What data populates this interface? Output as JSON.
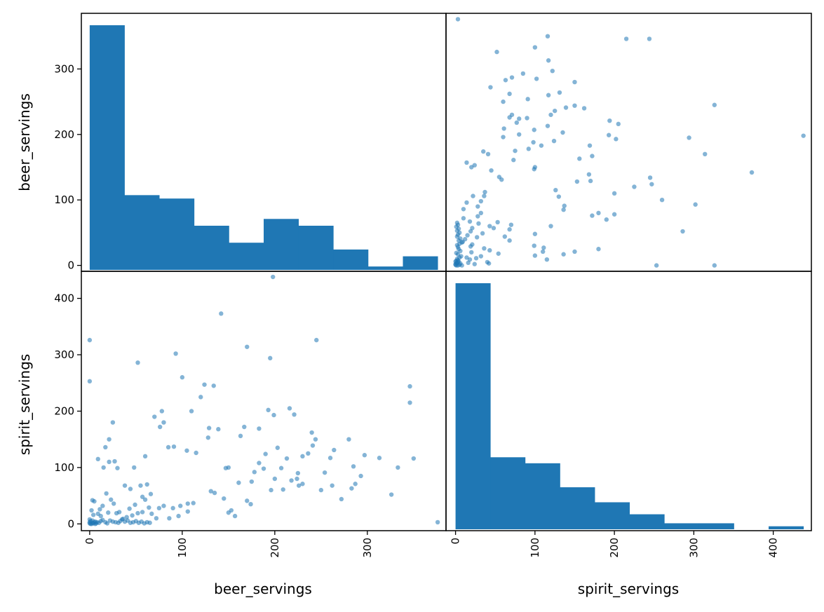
{
  "chart_data": {
    "type": "scatter",
    "kind": "scatter_matrix",
    "variables": [
      "beer_servings",
      "spirit_servings"
    ],
    "colors": {
      "marks": "#1f77b4",
      "frame": "#000000",
      "background": "#ffffff"
    },
    "axis_labels": {
      "beer_servings": "beer_servings",
      "spirit_servings": "spirit_servings"
    },
    "ranges": {
      "beer_servings": [
        -9,
        385
      ],
      "spirit_servings": [
        -12,
        448
      ]
    },
    "ticks": {
      "beer_servings": [
        {
          "value": 0,
          "label": "0"
        },
        {
          "value": 100,
          "label": "100"
        },
        {
          "value": 200,
          "label": "200"
        },
        {
          "value": 300,
          "label": "300"
        }
      ],
      "spirit_servings": [
        {
          "value": 0,
          "label": "0"
        },
        {
          "value": 100,
          "label": "100"
        },
        {
          "value": 200,
          "label": "200"
        },
        {
          "value": 300,
          "label": "300"
        },
        {
          "value": 400,
          "label": "400"
        }
      ]
    },
    "hist_beer_servings": {
      "edges": [
        0,
        37.6,
        75.2,
        112.8,
        150.4,
        188,
        225.6,
        263.2,
        300.8,
        338.4,
        376
      ],
      "counts": [
        72,
        22,
        21,
        13,
        8,
        15,
        13,
        6,
        1,
        4
      ]
    },
    "hist_spirit_servings": {
      "edges": [
        0,
        43.8,
        87.6,
        131.4,
        175.2,
        219,
        262.8,
        306.6,
        350.4,
        394.2,
        438
      ],
      "counts": [
        82,
        24,
        22,
        14,
        9,
        5,
        2,
        2,
        0,
        1
      ]
    },
    "points": [
      [
        376,
        3
      ],
      [
        198,
        438
      ],
      [
        245,
        326
      ],
      [
        313,
        117
      ],
      [
        240,
        162
      ],
      [
        333,
        100
      ],
      [
        350,
        116
      ],
      [
        285,
        102
      ],
      [
        346,
        244
      ],
      [
        200,
        80
      ],
      [
        297,
        122
      ],
      [
        264,
        131
      ],
      [
        241,
        139
      ],
      [
        221,
        194
      ],
      [
        147,
        99
      ],
      [
        346,
        215
      ],
      [
        326,
        52
      ],
      [
        283,
        63
      ],
      [
        216,
        205
      ],
      [
        280,
        150
      ],
      [
        230,
        120
      ],
      [
        244,
        150
      ],
      [
        167,
        172
      ],
      [
        224,
        80
      ],
      [
        115,
        126
      ],
      [
        199,
        193
      ],
      [
        142,
        373
      ],
      [
        170,
        314
      ],
      [
        195,
        294
      ],
      [
        134,
        245
      ],
      [
        124,
        247
      ],
      [
        128,
        153
      ],
      [
        193,
        202
      ],
      [
        188,
        98
      ],
      [
        100,
        260
      ],
      [
        129,
        170
      ],
      [
        150,
        100
      ],
      [
        110,
        200
      ],
      [
        120,
        225
      ],
      [
        93,
        302
      ],
      [
        80,
        180
      ],
      [
        76,
        172
      ],
      [
        78,
        200
      ],
      [
        70,
        190
      ],
      [
        62,
        70
      ],
      [
        85,
        136
      ],
      [
        91,
        137
      ],
      [
        60,
        43
      ],
      [
        55,
        68
      ],
      [
        48,
        100
      ],
      [
        52,
        286
      ],
      [
        44,
        62
      ],
      [
        25,
        180
      ],
      [
        21,
        150
      ],
      [
        21,
        110
      ],
      [
        17,
        136
      ],
      [
        15,
        100
      ],
      [
        9,
        115
      ],
      [
        0,
        326
      ],
      [
        0,
        253
      ],
      [
        3,
        42
      ],
      [
        5,
        40
      ],
      [
        2,
        24
      ],
      [
        9,
        18
      ],
      [
        12,
        14
      ],
      [
        0,
        8
      ],
      [
        1,
        5
      ],
      [
        3,
        6
      ],
      [
        6,
        4
      ],
      [
        8,
        3
      ],
      [
        10,
        2
      ],
      [
        12,
        5
      ],
      [
        14,
        7
      ],
      [
        17,
        3
      ],
      [
        19,
        1
      ],
      [
        22,
        6
      ],
      [
        25,
        4
      ],
      [
        28,
        3
      ],
      [
        31,
        2
      ],
      [
        33,
        5
      ],
      [
        35,
        8
      ],
      [
        38,
        4
      ],
      [
        41,
        6
      ],
      [
        44,
        2
      ],
      [
        47,
        3
      ],
      [
        50,
        5
      ],
      [
        53,
        2
      ],
      [
        56,
        4
      ],
      [
        59,
        1
      ],
      [
        62,
        3
      ],
      [
        65,
        2
      ],
      [
        0,
        1
      ],
      [
        1,
        0
      ],
      [
        2,
        0
      ],
      [
        4,
        1
      ],
      [
        6,
        0
      ],
      [
        3,
        2
      ],
      [
        7,
        1
      ],
      [
        5,
        3
      ],
      [
        0,
        3
      ],
      [
        20,
        20
      ],
      [
        23,
        43
      ],
      [
        26,
        36
      ],
      [
        29,
        19
      ],
      [
        32,
        21
      ],
      [
        36,
        9
      ],
      [
        40,
        12
      ],
      [
        43,
        27
      ],
      [
        46,
        15
      ],
      [
        49,
        34
      ],
      [
        52,
        19
      ],
      [
        57,
        21
      ],
      [
        64,
        29
      ],
      [
        67,
        18
      ],
      [
        72,
        10
      ],
      [
        80,
        32
      ],
      [
        90,
        28
      ],
      [
        98,
        32
      ],
      [
        106,
        22
      ],
      [
        112,
        37
      ],
      [
        153,
        24
      ],
      [
        157,
        14
      ],
      [
        161,
        73
      ],
      [
        170,
        41
      ],
      [
        174,
        35
      ],
      [
        178,
        92
      ],
      [
        183,
        108
      ],
      [
        190,
        124
      ],
      [
        196,
        60
      ],
      [
        209,
        61
      ],
      [
        218,
        77
      ],
      [
        226,
        68
      ],
      [
        230,
        71
      ],
      [
        254,
        91
      ],
      [
        262,
        68
      ],
      [
        272,
        44
      ],
      [
        287,
        71
      ],
      [
        293,
        85
      ],
      [
        260,
        117
      ],
      [
        236,
        125
      ],
      [
        213,
        116
      ],
      [
        207,
        99
      ],
      [
        203,
        135
      ],
      [
        183,
        169
      ],
      [
        163,
        156
      ],
      [
        139,
        168
      ],
      [
        131,
        58
      ],
      [
        106,
        36
      ],
      [
        96,
        14
      ],
      [
        86,
        10
      ],
      [
        75,
        28
      ],
      [
        66,
        53
      ],
      [
        57,
        48
      ],
      [
        38,
        68
      ],
      [
        30,
        99
      ],
      [
        27,
        111
      ],
      [
        18,
        54
      ],
      [
        14,
        32
      ],
      [
        11,
        26
      ],
      [
        4,
        16
      ],
      [
        60,
        120
      ],
      [
        105,
        130
      ],
      [
        135,
        55
      ],
      [
        145,
        45
      ],
      [
        150,
        20
      ],
      [
        175,
        75
      ],
      [
        225,
        90
      ],
      [
        250,
        60
      ]
    ]
  }
}
